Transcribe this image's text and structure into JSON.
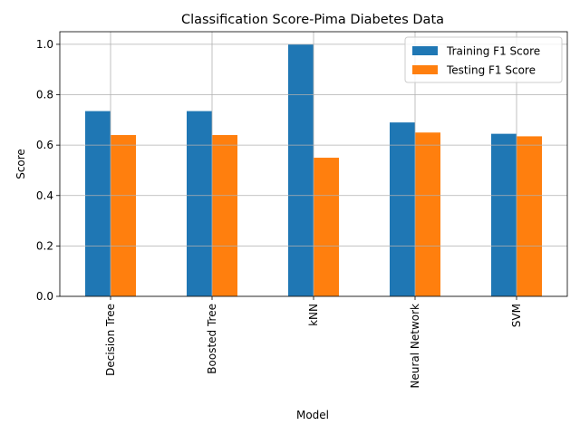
{
  "chart_data": {
    "type": "bar",
    "title": "Classification Score-Pima Diabetes Data",
    "xlabel": "Model",
    "ylabel": "Score",
    "categories": [
      "Decision Tree",
      "Boosted Tree",
      "kNN",
      "Neural Network",
      "SVM"
    ],
    "series": [
      {
        "name": "Training F1 Score",
        "values": [
          0.735,
          0.735,
          1.0,
          0.69,
          0.645
        ],
        "color": "#1f77b4"
      },
      {
        "name": "Testing F1 Score",
        "values": [
          0.64,
          0.64,
          0.55,
          0.65,
          0.635
        ],
        "color": "#ff7f0e"
      }
    ],
    "ylim": [
      0,
      1.05
    ],
    "yticks": [
      0.0,
      0.2,
      0.4,
      0.6,
      0.8,
      1.0
    ],
    "ytick_labels": [
      "0.0",
      "0.2",
      "0.4",
      "0.6",
      "0.8",
      "1.0"
    ],
    "grid": true,
    "legend_position": "top-right"
  }
}
